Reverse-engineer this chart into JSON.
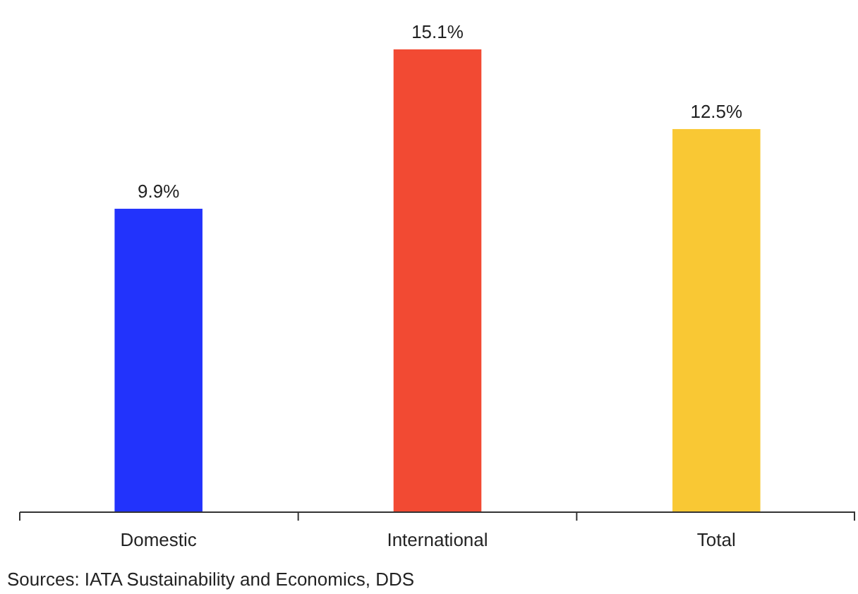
{
  "chart_data": {
    "type": "bar",
    "categories": [
      "Domestic",
      "International",
      "Total"
    ],
    "values": [
      9.9,
      15.1,
      12.5
    ],
    "colors": [
      "#2233fc",
      "#f24a33",
      "#f9c834"
    ],
    "value_labels": [
      "9.9%",
      "15.1%",
      "12.5%"
    ],
    "annotations": [
      "Sources: IATA Sustainability and Economics, DDS"
    ]
  }
}
